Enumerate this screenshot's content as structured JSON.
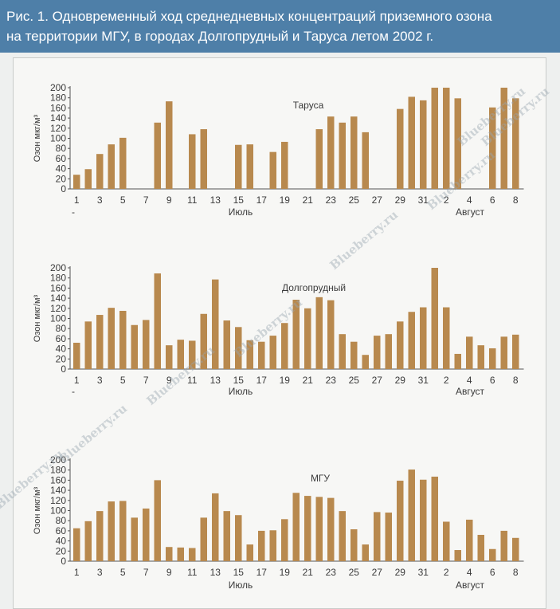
{
  "header": {
    "line1": "Рис. 1. Одновременный ход среднедневных концентраций приземного озона",
    "line2": "на территории МГУ, в городах Долгопрудный и Таруса летом 2002 г."
  },
  "colors": {
    "bar": "#b8894e",
    "header": "#4e7fa8",
    "axis": "#555555"
  },
  "watermarks": [
    "Blueberry.ru",
    "Blueberry.ru",
    "Blueberry.ru",
    "Blueberry.ru",
    "Blueberry.ru",
    "Blueberry.ru",
    "Blueberry.ru",
    "Blueberry.ru"
  ],
  "chart_data": [
    {
      "type": "bar",
      "title": "Таруса",
      "ylabel": "Озон мкг/м³",
      "ylim": [
        0,
        200
      ],
      "yticks": [
        0,
        20,
        40,
        60,
        80,
        100,
        120,
        140,
        160,
        180,
        200
      ],
      "xtick_labels": [
        "1",
        "3",
        "5",
        "7",
        "9",
        "11",
        "13",
        "15",
        "17",
        "19",
        "21",
        "23",
        "25",
        "27",
        "29",
        "31",
        "2",
        "4",
        "6",
        "8"
      ],
      "month_labels": [
        "Июль",
        "Август"
      ],
      "leading_mark": "-",
      "values": [
        28,
        39,
        69,
        88,
        101,
        null,
        null,
        131,
        173,
        null,
        108,
        118,
        null,
        null,
        87,
        88,
        null,
        73,
        93,
        null,
        null,
        118,
        143,
        131,
        143,
        112,
        null,
        null,
        158,
        182,
        175,
        200,
        200,
        179,
        null,
        null,
        161,
        200,
        179
      ]
    },
    {
      "type": "bar",
      "title": "Долгопрудный",
      "ylabel": "Озон мкг/м³",
      "ylim": [
        0,
        200
      ],
      "yticks": [
        0,
        20,
        40,
        60,
        80,
        100,
        120,
        140,
        160,
        180,
        200
      ],
      "xtick_labels": [
        "1",
        "3",
        "5",
        "7",
        "9",
        "11",
        "13",
        "15",
        "17",
        "19",
        "21",
        "23",
        "25",
        "27",
        "29",
        "31",
        "2",
        "4",
        "6",
        "8"
      ],
      "month_labels": [
        "Июль",
        "Август"
      ],
      "leading_mark": "-",
      "values": [
        52,
        94,
        107,
        121,
        115,
        87,
        97,
        189,
        47,
        58,
        56,
        109,
        177,
        96,
        83,
        57,
        54,
        66,
        91,
        137,
        120,
        142,
        136,
        69,
        54,
        28,
        66,
        69,
        94,
        113,
        122,
        200,
        122,
        30,
        64,
        47,
        41,
        64,
        68
      ]
    },
    {
      "type": "bar",
      "title": "МГУ",
      "ylabel": "Озон мкг/м³",
      "ylim": [
        0,
        200
      ],
      "yticks": [
        0,
        20,
        40,
        60,
        80,
        100,
        120,
        140,
        160,
        180,
        200
      ],
      "xtick_labels": [
        "1",
        "3",
        "5",
        "7",
        "9",
        "11",
        "13",
        "15",
        "17",
        "19",
        "21",
        "23",
        "25",
        "27",
        "29",
        "31",
        "2",
        "4",
        "6",
        "8"
      ],
      "month_labels": [
        "Июль",
        "Август"
      ],
      "values": [
        65,
        79,
        99,
        118,
        119,
        86,
        104,
        160,
        28,
        27,
        26,
        86,
        134,
        99,
        91,
        33,
        60,
        61,
        83,
        135,
        129,
        127,
        125,
        99,
        63,
        33,
        97,
        96,
        159,
        181,
        161,
        167,
        78,
        22,
        82,
        52,
        24,
        60,
        46
      ]
    }
  ]
}
